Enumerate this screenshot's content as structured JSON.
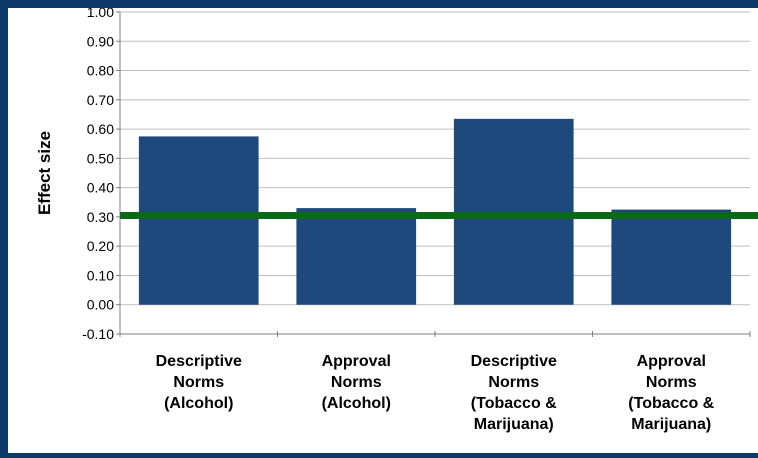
{
  "chart_data": {
    "type": "bar",
    "title": "",
    "xlabel": "",
    "ylabel": "Effect size",
    "ylim": [
      -0.1,
      1.0
    ],
    "yticks": [
      "-0.10",
      "0.00",
      "0.10",
      "0.20",
      "0.30",
      "0.40",
      "0.50",
      "0.60",
      "0.70",
      "0.80",
      "0.90",
      "1.00"
    ],
    "grid": true,
    "legend": "none",
    "categories": [
      [
        "Descriptive",
        "Norms",
        "(Alcohol)"
      ],
      [
        "Approval",
        "Norms",
        "(Alcohol)"
      ],
      [
        "Descriptive",
        "Norms",
        "(Tobacco &",
        "Marijuana)"
      ],
      [
        "Approval",
        "Norms",
        "(Tobacco &",
        "Marijuana)"
      ]
    ],
    "values": [
      0.575,
      0.33,
      0.635,
      0.325
    ],
    "reference_line": 0.305,
    "colors": {
      "bar": "#1f497d",
      "reference_line": "#0b6a1a",
      "grid": "#bfbfbf",
      "axis": "#7f7f7f",
      "background": "#0e3a6b"
    }
  }
}
